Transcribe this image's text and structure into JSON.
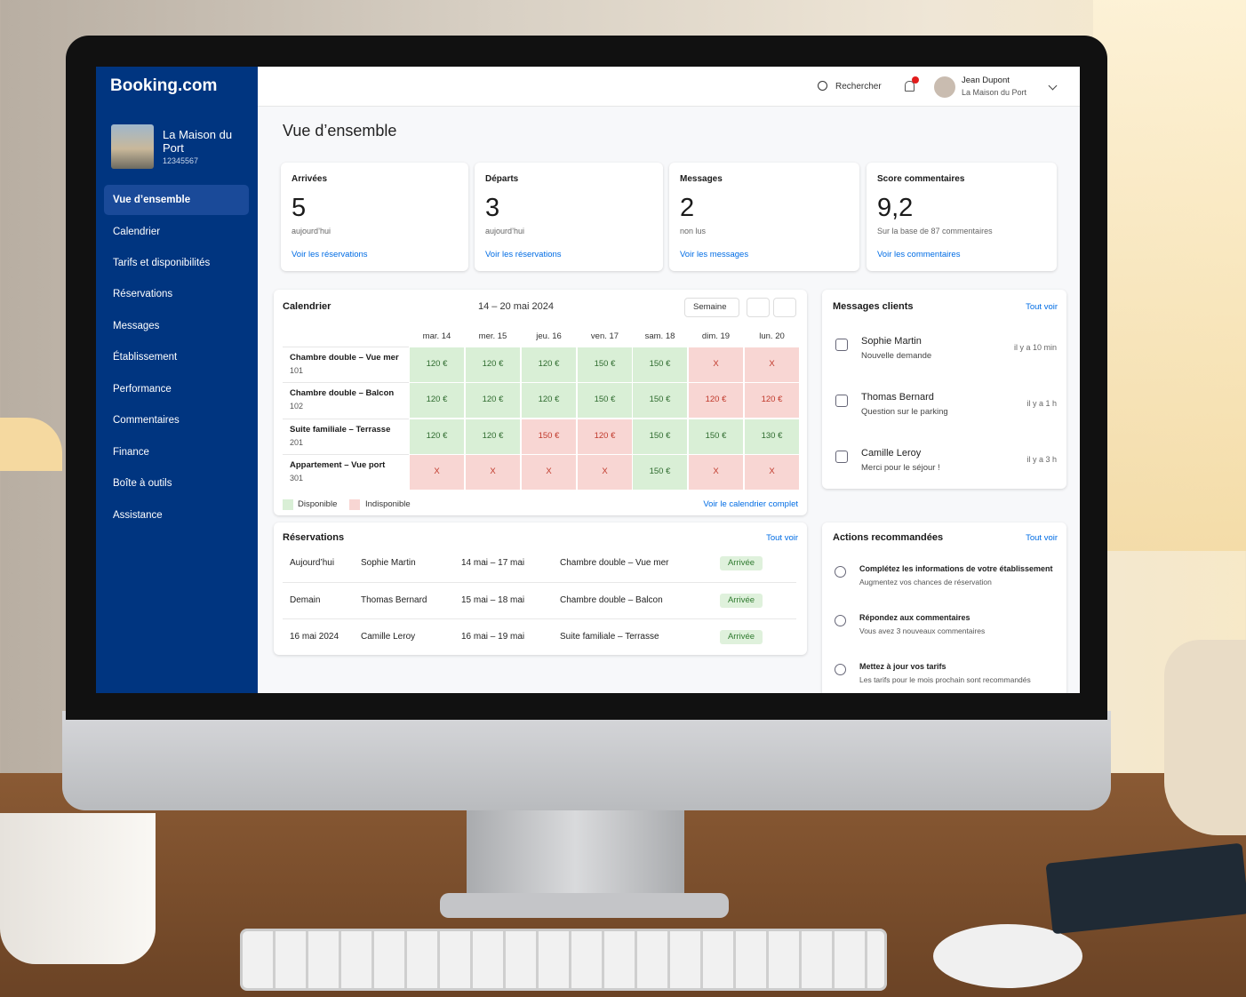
{
  "sidebar": {
    "logo": "Booking.com",
    "property_name": "La Maison du Port",
    "property_id": "12345567",
    "nav": [
      "Vue d’ensemble",
      "Calendrier",
      "Tarifs et disponibilités",
      "Réservations",
      "Messages",
      "Établissement",
      "Performance",
      "Commentaires",
      "Finance",
      "Boîte à outils",
      "Assistance"
    ]
  },
  "header": {
    "search": "Rechercher",
    "user_name": "Jean Dupont",
    "user_property": "La Maison du Port"
  },
  "title": "Vue d’ensemble",
  "cards": [
    {
      "label": "Arrivées",
      "value": "5",
      "sub": "aujourd’hui",
      "link": "Voir les réservations"
    },
    {
      "label": "Départs",
      "value": "3",
      "sub": "aujourd’hui",
      "link": "Voir les réservations"
    },
    {
      "label": "Messages",
      "value": "2",
      "sub": "non lus",
      "link": "Voir les messages"
    },
    {
      "label": "Score commentaires",
      "value": "9,2",
      "sub": "Sur la base de 87 commentaires",
      "link": "Voir les commentaires"
    }
  ],
  "calendar": {
    "title": "Calendrier",
    "range": "14 – 20 mai 2024",
    "view": "Semaine",
    "days": [
      "mar. 14",
      "mer. 15",
      "jeu. 16",
      "ven. 17",
      "sam. 18",
      "dim. 19",
      "lun. 20"
    ],
    "rooms": [
      {
        "name": "Chambre double – Vue mer",
        "number": "101",
        "cells": [
          "120 €",
          "120 €",
          "120 €",
          "150 €",
          "150 €",
          "X",
          "X"
        ],
        "status": [
          "a",
          "a",
          "a",
          "a",
          "a",
          "u",
          "u"
        ]
      },
      {
        "name": "Chambre double – Balcon",
        "number": "102",
        "cells": [
          "120 €",
          "120 €",
          "120 €",
          "150 €",
          "150 €",
          "120 €",
          "120 €"
        ],
        "status": [
          "a",
          "a",
          "a",
          "a",
          "a",
          "u",
          "u"
        ]
      },
      {
        "name": "Suite familiale – Terrasse",
        "number": "201",
        "cells": [
          "120 €",
          "120 €",
          "150 €",
          "120 €",
          "150 €",
          "150 €",
          "130 €"
        ],
        "status": [
          "a",
          "a",
          "u",
          "u",
          "a",
          "a",
          "a"
        ]
      },
      {
        "name": "Appartement – Vue port",
        "number": "301",
        "cells": [
          "X",
          "X",
          "X",
          "X",
          "150 €",
          "X",
          "X"
        ],
        "status": [
          "u",
          "u",
          "u",
          "u",
          "a",
          "u",
          "u"
        ]
      }
    ],
    "legend": [
      "Disponible",
      "Indisponible"
    ],
    "link": "Voir le calendrier complet"
  },
  "messages": {
    "title": "Messages clients",
    "link": "Tout voir",
    "items": [
      {
        "name": "Sophie Martin",
        "text": "Nouvelle demande",
        "time": "il y a 10 min"
      },
      {
        "name": "Thomas Bernard",
        "text": "Question sur le parking",
        "time": "il y a 1 h"
      },
      {
        "name": "Camille Leroy",
        "text": "Merci pour le séjour !",
        "time": "il y a 3 h"
      }
    ]
  },
  "reservations": {
    "title": "Réservations",
    "link": "Tout voir",
    "rows": [
      [
        "Aujourd’hui",
        "Sophie Martin",
        "14 mai – 17 mai",
        "Chambre double – Vue mer",
        "Arrivée"
      ],
      [
        "Demain",
        "Thomas Bernard",
        "15 mai – 18 mai",
        "Chambre double – Balcon",
        "Arrivée"
      ],
      [
        "16 mai 2024",
        "Camille Leroy",
        "16 mai – 19 mai",
        "Suite familiale – Terrasse",
        "Arrivée"
      ]
    ]
  },
  "actions": {
    "title": "Actions recommandées",
    "link": "Tout voir",
    "items": [
      {
        "title": "Complétez les informations de votre établissement",
        "text": "Augmentez vos chances de réservation"
      },
      {
        "title": "Répondez aux commentaires",
        "text": "Vous avez 3 nouveaux commentaires"
      },
      {
        "title": "Mettez à jour vos tarifs",
        "text": "Les tarifs pour le mois prochain sont recommandés"
      }
    ]
  }
}
